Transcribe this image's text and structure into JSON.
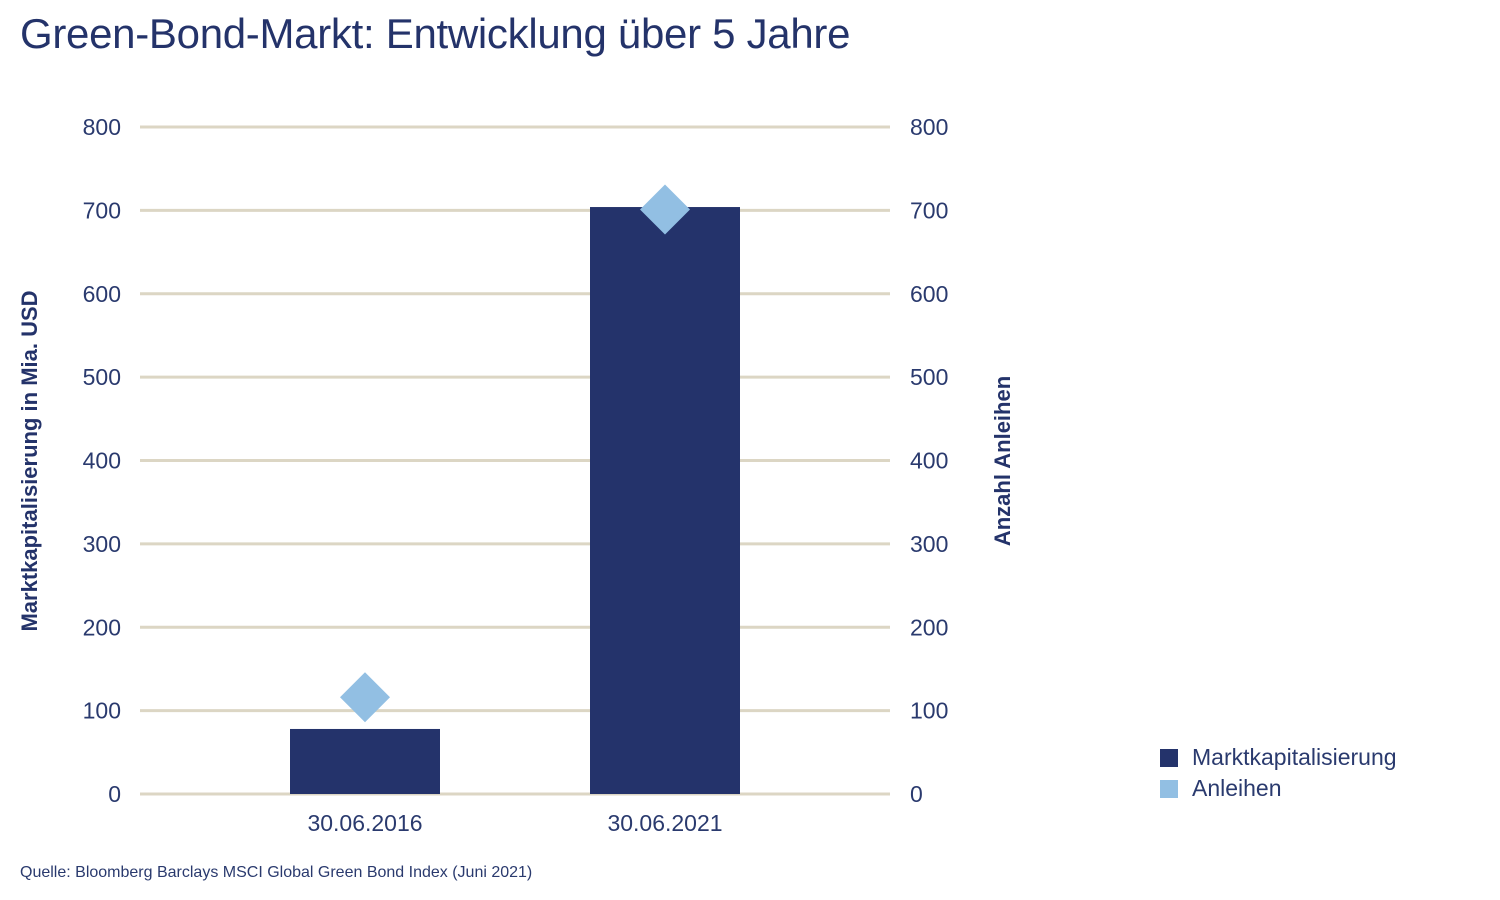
{
  "chart_data": {
    "type": "bar",
    "title": "Green-Bond-Markt: Entwicklung über 5 Jahre",
    "categories": [
      "30.06.2016",
      "30.06.2021"
    ],
    "series": [
      {
        "name": "Marktkapitalisierung",
        "kind": "bar",
        "axis": "left",
        "color": "#24336b",
        "values": [
          78,
          704
        ]
      },
      {
        "name": "Anleihen",
        "kind": "marker-diamond",
        "axis": "right",
        "color": "#92bfe3",
        "values": [
          116,
          701
        ]
      }
    ],
    "ylabel": "Marktkapitalisierung in Mia. USD",
    "y2label": "Anzahl Anleihen",
    "ylim": [
      0,
      800
    ],
    "y2lim": [
      0,
      800
    ],
    "yticks": [
      0,
      100,
      200,
      300,
      400,
      500,
      600,
      700,
      800
    ],
    "y2ticks": [
      0,
      100,
      200,
      300,
      400,
      500,
      600,
      700,
      800
    ],
    "grid": true,
    "grid_color": "#dcd6c4",
    "legend": "bottom-right",
    "source": "Quelle: Bloomberg Barclays MSCI Global Green Bond Index (Juni 2021)"
  }
}
